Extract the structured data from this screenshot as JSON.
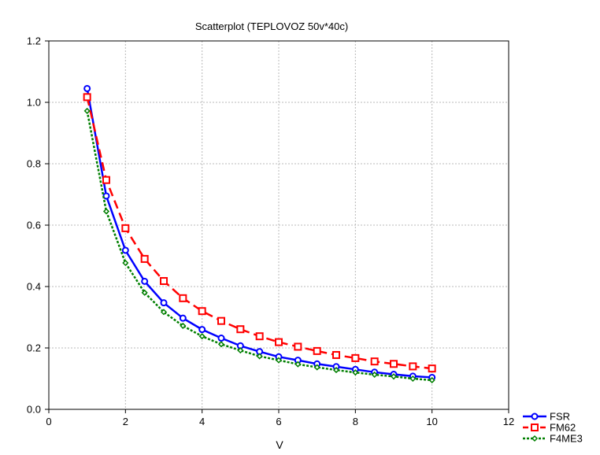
{
  "chart_data": {
    "type": "line",
    "title": "Scatterplot (TEPLOVOZ 50v*40c)",
    "xlabel": "V",
    "ylabel": "",
    "xlim": [
      0,
      12
    ],
    "ylim": [
      0,
      1.2
    ],
    "x_ticks": [
      "0",
      "2",
      "4",
      "6",
      "8",
      "10",
      "12"
    ],
    "y_ticks": [
      "0.0",
      "0.2",
      "0.4",
      "0.6",
      "0.8",
      "1.0",
      "1.2"
    ],
    "grid": true,
    "legend_position": "bottom-right",
    "series": [
      {
        "name": "FSR",
        "color": "#0000ff",
        "line_style": "solid",
        "marker": "circle",
        "x": [
          1,
          1.5,
          2,
          2.5,
          3,
          3.5,
          4,
          4.5,
          5,
          5.5,
          6,
          6.5,
          7,
          7.5,
          8,
          8.5,
          9,
          9.5,
          10
        ],
        "values": [
          1.045,
          0.695,
          0.518,
          0.417,
          0.347,
          0.297,
          0.26,
          0.232,
          0.207,
          0.188,
          0.171,
          0.16,
          0.148,
          0.139,
          0.13,
          0.121,
          0.114,
          0.108,
          0.104
        ]
      },
      {
        "name": "FM62",
        "color": "#ff0000",
        "line_style": "dashed",
        "marker": "square",
        "x": [
          1,
          1.5,
          2,
          2.5,
          3,
          3.5,
          4,
          4.5,
          5,
          5.5,
          6,
          6.5,
          7,
          7.5,
          8,
          8.5,
          9,
          9.5,
          10
        ],
        "values": [
          1.017,
          0.747,
          0.59,
          0.49,
          0.418,
          0.362,
          0.32,
          0.288,
          0.261,
          0.238,
          0.219,
          0.204,
          0.19,
          0.177,
          0.167,
          0.156,
          0.148,
          0.14,
          0.133
        ]
      },
      {
        "name": "F4ME3",
        "color": "#007f00",
        "line_style": "dotted",
        "marker": "diamond",
        "x": [
          1,
          1.5,
          2,
          2.5,
          3,
          3.5,
          4,
          4.5,
          5,
          5.5,
          6,
          6.5,
          7,
          7.5,
          8,
          8.5,
          9,
          9.5,
          10
        ],
        "values": [
          0.972,
          0.645,
          0.477,
          0.38,
          0.317,
          0.272,
          0.238,
          0.212,
          0.192,
          0.173,
          0.16,
          0.147,
          0.137,
          0.128,
          0.12,
          0.113,
          0.107,
          0.1,
          0.095
        ]
      }
    ]
  }
}
